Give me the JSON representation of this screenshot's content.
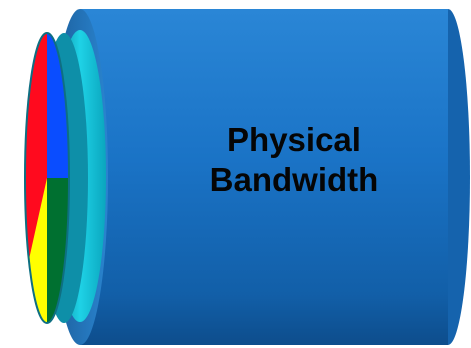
{
  "diagram": {
    "label_line1": "Physical",
    "label_line2": "Bandwidth"
  },
  "colors": {
    "pipe_body": "#1a6fc4",
    "pipe_ring": "#00b4c8",
    "pipe_rim": "#1f6fb5",
    "slice_red": "#ff0a1e",
    "slice_blue": "#0a4dff",
    "slice_green": "#007030",
    "slice_yellow": "#ffff00"
  }
}
